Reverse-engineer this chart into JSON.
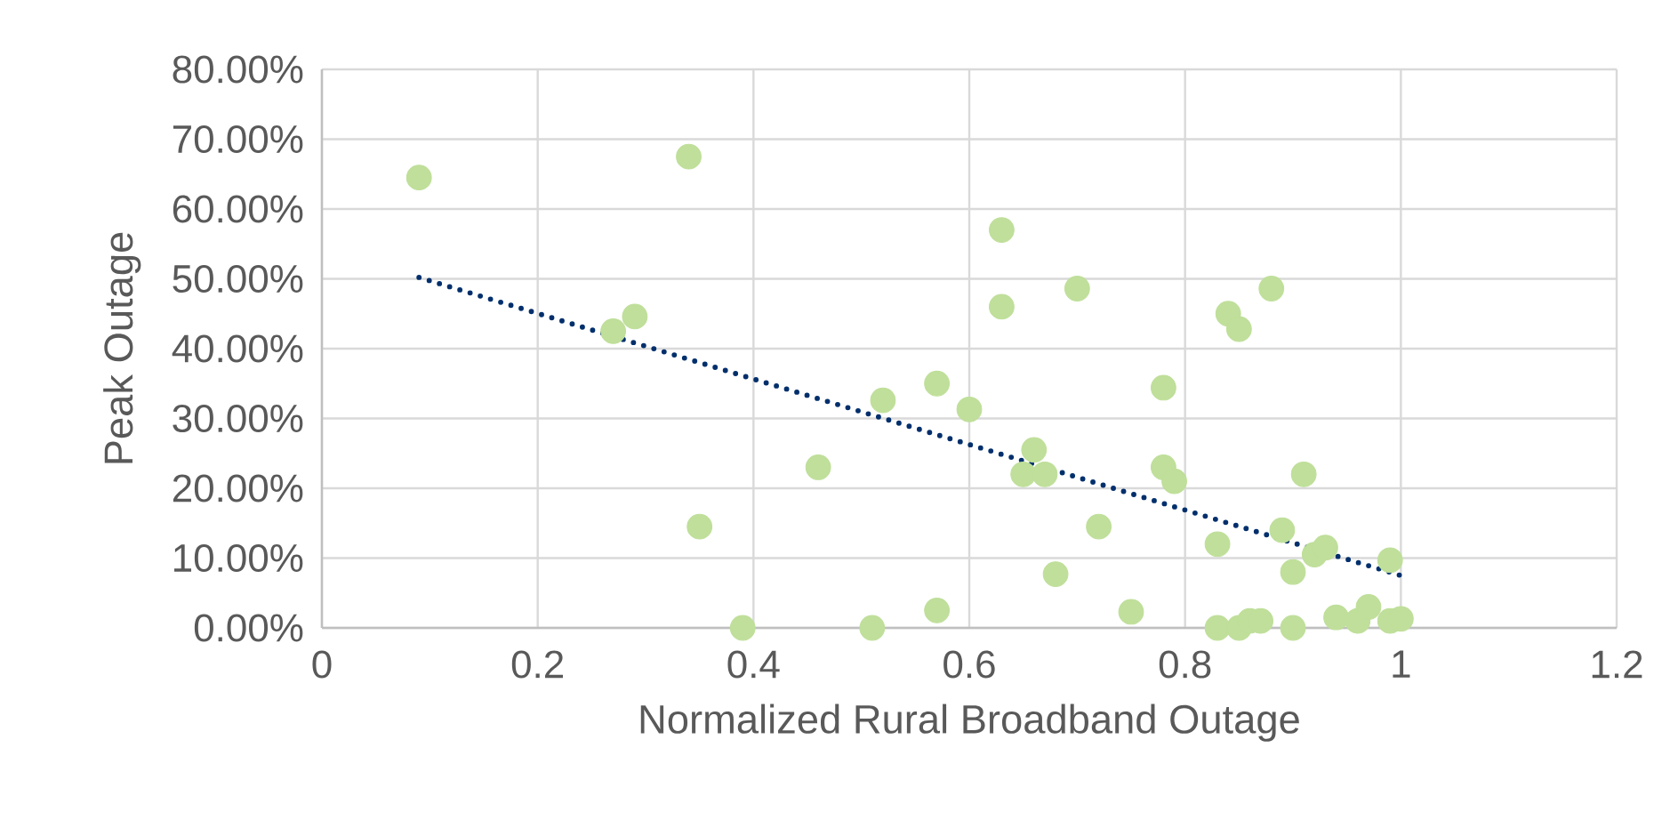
{
  "chart_data": {
    "type": "scatter",
    "xlabel": "Normalized Rural Broadband Outage",
    "ylabel": "Peak Outage",
    "xlim": [
      0,
      1.2
    ],
    "xticks": [
      0,
      0.2,
      0.4,
      0.6,
      0.8,
      1,
      1.2
    ],
    "ylim": [
      0,
      80
    ],
    "yticks": [
      {
        "value": 0,
        "label": "0.00%"
      },
      {
        "value": 10,
        "label": "10.00%"
      },
      {
        "value": 20,
        "label": "20.00%"
      },
      {
        "value": 30,
        "label": "30.00%"
      },
      {
        "value": 40,
        "label": "40.00%"
      },
      {
        "value": 50,
        "label": "50.00%"
      },
      {
        "value": 60,
        "label": "60.00%"
      },
      {
        "value": 70,
        "label": "70.00%"
      },
      {
        "value": 80,
        "label": "80.00%"
      }
    ],
    "grid": true,
    "series": [
      {
        "color": "#bfdf9a",
        "marker": "circle",
        "x": [
          0.09,
          0.34,
          0.27,
          0.29,
          0.35,
          0.39,
          0.46,
          0.51,
          0.52,
          0.57,
          0.57,
          0.6,
          0.63,
          0.63,
          0.65,
          0.66,
          0.67,
          0.68,
          0.7,
          0.72,
          0.75,
          0.78,
          0.78,
          0.79,
          0.83,
          0.83,
          0.84,
          0.85,
          0.85,
          0.86,
          0.87,
          0.88,
          0.89,
          0.9,
          0.9,
          0.91,
          0.92,
          0.93,
          0.94,
          0.96,
          0.97,
          0.99,
          0.99,
          1.0
        ],
        "values": [
          64.5,
          67.5,
          42.5,
          44.6,
          14.5,
          0,
          23,
          0,
          32.6,
          2.5,
          35,
          31.3,
          57,
          46,
          22,
          25.5,
          22,
          7.7,
          48.6,
          14.5,
          2.3,
          34.4,
          23,
          21,
          12,
          0,
          45,
          42.8,
          0,
          1,
          1,
          48.6,
          14,
          8,
          0,
          22,
          10.5,
          11.5,
          1.5,
          1,
          3,
          1,
          9.7,
          1.3
        ]
      },
      {
        "type": "line",
        "color": "#002f6c",
        "marker": "none",
        "line_style": "dotted",
        "x": [
          0.09,
          1.0
        ],
        "values": [
          50.2,
          7.5
        ]
      }
    ]
  }
}
